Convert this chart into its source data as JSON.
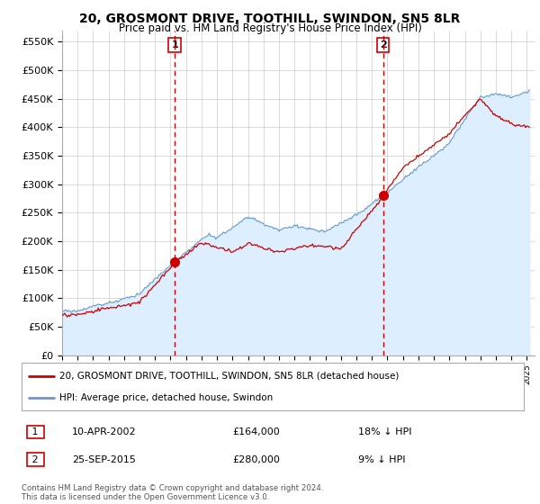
{
  "title": "20, GROSMONT DRIVE, TOOTHILL, SWINDON, SN5 8LR",
  "subtitle": "Price paid vs. HM Land Registry's House Price Index (HPI)",
  "title_fontsize": 10,
  "subtitle_fontsize": 8.5,
  "ylabel_ticks": [
    "£0",
    "£50K",
    "£100K",
    "£150K",
    "£200K",
    "£250K",
    "£300K",
    "£350K",
    "£400K",
    "£450K",
    "£500K",
    "£550K"
  ],
  "ytick_values": [
    0,
    50000,
    100000,
    150000,
    200000,
    250000,
    300000,
    350000,
    400000,
    450000,
    500000,
    550000
  ],
  "ylim": [
    0,
    570000
  ],
  "xlim_start": 1995.0,
  "xlim_end": 2025.5,
  "sale1_date": 2002.27,
  "sale1_price": 164000,
  "sale1_label": "1",
  "sale2_date": 2015.73,
  "sale2_price": 280000,
  "sale2_label": "2",
  "red_line_color": "#cc0000",
  "blue_line_color": "#6699cc",
  "blue_fill_color": "#ddeeff",
  "vline_color": "#cc0000",
  "grid_color": "#cccccc",
  "background_color": "#ffffff",
  "legend_line1": "20, GROSMONT DRIVE, TOOTHILL, SWINDON, SN5 8LR (detached house)",
  "legend_line2": "HPI: Average price, detached house, Swindon",
  "annotation1_date": "10-APR-2002",
  "annotation1_price": "£164,000",
  "annotation1_hpi": "18% ↓ HPI",
  "annotation2_date": "25-SEP-2015",
  "annotation2_price": "£280,000",
  "annotation2_hpi": "9% ↓ HPI",
  "footer": "Contains HM Land Registry data © Crown copyright and database right 2024.\nThis data is licensed under the Open Government Licence v3.0."
}
